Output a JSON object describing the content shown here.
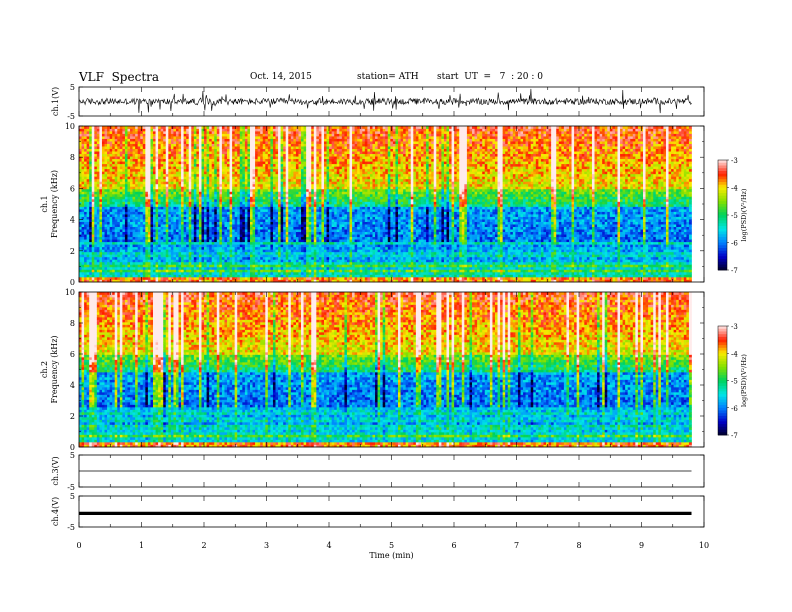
{
  "header": {
    "title": "VLF  Spectra",
    "date": "Oct. 14, 2015",
    "station": "station= ATH",
    "start": "start  UT  =   7  : 20 : 0"
  },
  "chart_data": [
    {
      "type": "line",
      "panel": "ch1-waveform",
      "ylabel": "ch.1(V)",
      "ylim": [
        -5,
        5
      ],
      "yticks": [
        "5",
        "-5"
      ],
      "x_range": [
        0,
        10
      ],
      "trace_end_min": 9.8
    },
    {
      "type": "heatmap",
      "panel": "ch1-spectrogram",
      "ylabel": "ch.1\nFrequency (kHz)",
      "ylim": [
        0,
        10
      ],
      "yticks": [
        "0",
        "2",
        "4",
        "6",
        "8",
        "10"
      ],
      "x_range": [
        0,
        10
      ],
      "data_end_min": 9.8,
      "colorbar": {
        "label": "log(PSD)(V²/Hz)",
        "range": [
          -7,
          -3
        ],
        "ticks": [
          "-3",
          "-4",
          "-5",
          "-6",
          "-7"
        ]
      }
    },
    {
      "type": "heatmap",
      "panel": "ch2-spectrogram",
      "ylabel": "ch.2\nFrequency (kHz)",
      "ylim": [
        0,
        10
      ],
      "yticks": [
        "0",
        "2",
        "4",
        "6",
        "8",
        "10"
      ],
      "x_range": [
        0,
        10
      ],
      "data_end_min": 9.8,
      "colorbar": {
        "label": "log(PSD)(V²/Hz)",
        "range": [
          -7,
          -3
        ],
        "ticks": [
          "-3",
          "-4",
          "-5",
          "-6",
          "-7"
        ]
      }
    },
    {
      "type": "line",
      "panel": "ch3-waveform",
      "ylabel": "ch.3(V)",
      "ylim": [
        -5,
        5
      ],
      "yticks": [
        "5",
        "-5"
      ],
      "x_range": [
        0,
        10
      ],
      "trace_end_min": 9.8
    },
    {
      "type": "line",
      "panel": "ch4-waveform",
      "ylabel": "ch.4(V)",
      "ylim": [
        -5,
        5
      ],
      "yticks": [
        "5",
        "-5"
      ],
      "x_range": [
        0,
        10
      ],
      "trace_end_min": 9.8
    }
  ],
  "xaxis": {
    "label": "Time (min)",
    "ticks": [
      "0",
      "1",
      "2",
      "3",
      "4",
      "5",
      "6",
      "7",
      "8",
      "9",
      "10"
    ]
  }
}
